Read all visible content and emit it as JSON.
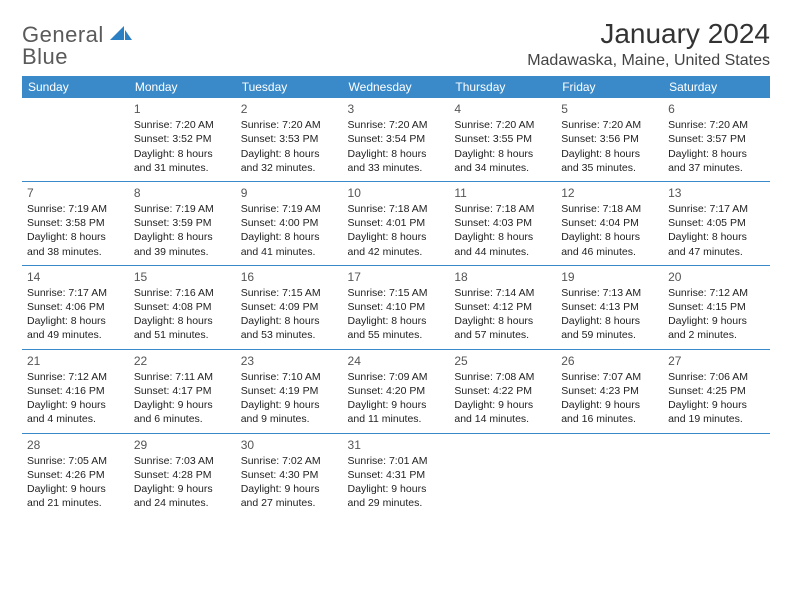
{
  "logo": {
    "text_gray": "General",
    "text_blue": "Blue",
    "shape_color": "#2b7fc3"
  },
  "header": {
    "month_title": "January 2024",
    "location": "Madawaska, Maine, United States"
  },
  "colors": {
    "header_bg": "#3a8ac9",
    "header_text": "#ffffff",
    "row_border": "#3a8ac9",
    "body_text": "#222222",
    "daynum_color": "#555555",
    "page_bg": "#ffffff"
  },
  "weekdays": [
    "Sunday",
    "Monday",
    "Tuesday",
    "Wednesday",
    "Thursday",
    "Friday",
    "Saturday"
  ],
  "cells": [
    [
      {
        "day": "",
        "sunrise": "",
        "sunset": "",
        "daylight1": "",
        "daylight2": ""
      },
      {
        "day": "1",
        "sunrise": "Sunrise: 7:20 AM",
        "sunset": "Sunset: 3:52 PM",
        "daylight1": "Daylight: 8 hours",
        "daylight2": "and 31 minutes."
      },
      {
        "day": "2",
        "sunrise": "Sunrise: 7:20 AM",
        "sunset": "Sunset: 3:53 PM",
        "daylight1": "Daylight: 8 hours",
        "daylight2": "and 32 minutes."
      },
      {
        "day": "3",
        "sunrise": "Sunrise: 7:20 AM",
        "sunset": "Sunset: 3:54 PM",
        "daylight1": "Daylight: 8 hours",
        "daylight2": "and 33 minutes."
      },
      {
        "day": "4",
        "sunrise": "Sunrise: 7:20 AM",
        "sunset": "Sunset: 3:55 PM",
        "daylight1": "Daylight: 8 hours",
        "daylight2": "and 34 minutes."
      },
      {
        "day": "5",
        "sunrise": "Sunrise: 7:20 AM",
        "sunset": "Sunset: 3:56 PM",
        "daylight1": "Daylight: 8 hours",
        "daylight2": "and 35 minutes."
      },
      {
        "day": "6",
        "sunrise": "Sunrise: 7:20 AM",
        "sunset": "Sunset: 3:57 PM",
        "daylight1": "Daylight: 8 hours",
        "daylight2": "and 37 minutes."
      }
    ],
    [
      {
        "day": "7",
        "sunrise": "Sunrise: 7:19 AM",
        "sunset": "Sunset: 3:58 PM",
        "daylight1": "Daylight: 8 hours",
        "daylight2": "and 38 minutes."
      },
      {
        "day": "8",
        "sunrise": "Sunrise: 7:19 AM",
        "sunset": "Sunset: 3:59 PM",
        "daylight1": "Daylight: 8 hours",
        "daylight2": "and 39 minutes."
      },
      {
        "day": "9",
        "sunrise": "Sunrise: 7:19 AM",
        "sunset": "Sunset: 4:00 PM",
        "daylight1": "Daylight: 8 hours",
        "daylight2": "and 41 minutes."
      },
      {
        "day": "10",
        "sunrise": "Sunrise: 7:18 AM",
        "sunset": "Sunset: 4:01 PM",
        "daylight1": "Daylight: 8 hours",
        "daylight2": "and 42 minutes."
      },
      {
        "day": "11",
        "sunrise": "Sunrise: 7:18 AM",
        "sunset": "Sunset: 4:03 PM",
        "daylight1": "Daylight: 8 hours",
        "daylight2": "and 44 minutes."
      },
      {
        "day": "12",
        "sunrise": "Sunrise: 7:18 AM",
        "sunset": "Sunset: 4:04 PM",
        "daylight1": "Daylight: 8 hours",
        "daylight2": "and 46 minutes."
      },
      {
        "day": "13",
        "sunrise": "Sunrise: 7:17 AM",
        "sunset": "Sunset: 4:05 PM",
        "daylight1": "Daylight: 8 hours",
        "daylight2": "and 47 minutes."
      }
    ],
    [
      {
        "day": "14",
        "sunrise": "Sunrise: 7:17 AM",
        "sunset": "Sunset: 4:06 PM",
        "daylight1": "Daylight: 8 hours",
        "daylight2": "and 49 minutes."
      },
      {
        "day": "15",
        "sunrise": "Sunrise: 7:16 AM",
        "sunset": "Sunset: 4:08 PM",
        "daylight1": "Daylight: 8 hours",
        "daylight2": "and 51 minutes."
      },
      {
        "day": "16",
        "sunrise": "Sunrise: 7:15 AM",
        "sunset": "Sunset: 4:09 PM",
        "daylight1": "Daylight: 8 hours",
        "daylight2": "and 53 minutes."
      },
      {
        "day": "17",
        "sunrise": "Sunrise: 7:15 AM",
        "sunset": "Sunset: 4:10 PM",
        "daylight1": "Daylight: 8 hours",
        "daylight2": "and 55 minutes."
      },
      {
        "day": "18",
        "sunrise": "Sunrise: 7:14 AM",
        "sunset": "Sunset: 4:12 PM",
        "daylight1": "Daylight: 8 hours",
        "daylight2": "and 57 minutes."
      },
      {
        "day": "19",
        "sunrise": "Sunrise: 7:13 AM",
        "sunset": "Sunset: 4:13 PM",
        "daylight1": "Daylight: 8 hours",
        "daylight2": "and 59 minutes."
      },
      {
        "day": "20",
        "sunrise": "Sunrise: 7:12 AM",
        "sunset": "Sunset: 4:15 PM",
        "daylight1": "Daylight: 9 hours",
        "daylight2": "and 2 minutes."
      }
    ],
    [
      {
        "day": "21",
        "sunrise": "Sunrise: 7:12 AM",
        "sunset": "Sunset: 4:16 PM",
        "daylight1": "Daylight: 9 hours",
        "daylight2": "and 4 minutes."
      },
      {
        "day": "22",
        "sunrise": "Sunrise: 7:11 AM",
        "sunset": "Sunset: 4:17 PM",
        "daylight1": "Daylight: 9 hours",
        "daylight2": "and 6 minutes."
      },
      {
        "day": "23",
        "sunrise": "Sunrise: 7:10 AM",
        "sunset": "Sunset: 4:19 PM",
        "daylight1": "Daylight: 9 hours",
        "daylight2": "and 9 minutes."
      },
      {
        "day": "24",
        "sunrise": "Sunrise: 7:09 AM",
        "sunset": "Sunset: 4:20 PM",
        "daylight1": "Daylight: 9 hours",
        "daylight2": "and 11 minutes."
      },
      {
        "day": "25",
        "sunrise": "Sunrise: 7:08 AM",
        "sunset": "Sunset: 4:22 PM",
        "daylight1": "Daylight: 9 hours",
        "daylight2": "and 14 minutes."
      },
      {
        "day": "26",
        "sunrise": "Sunrise: 7:07 AM",
        "sunset": "Sunset: 4:23 PM",
        "daylight1": "Daylight: 9 hours",
        "daylight2": "and 16 minutes."
      },
      {
        "day": "27",
        "sunrise": "Sunrise: 7:06 AM",
        "sunset": "Sunset: 4:25 PM",
        "daylight1": "Daylight: 9 hours",
        "daylight2": "and 19 minutes."
      }
    ],
    [
      {
        "day": "28",
        "sunrise": "Sunrise: 7:05 AM",
        "sunset": "Sunset: 4:26 PM",
        "daylight1": "Daylight: 9 hours",
        "daylight2": "and 21 minutes."
      },
      {
        "day": "29",
        "sunrise": "Sunrise: 7:03 AM",
        "sunset": "Sunset: 4:28 PM",
        "daylight1": "Daylight: 9 hours",
        "daylight2": "and 24 minutes."
      },
      {
        "day": "30",
        "sunrise": "Sunrise: 7:02 AM",
        "sunset": "Sunset: 4:30 PM",
        "daylight1": "Daylight: 9 hours",
        "daylight2": "and 27 minutes."
      },
      {
        "day": "31",
        "sunrise": "Sunrise: 7:01 AM",
        "sunset": "Sunset: 4:31 PM",
        "daylight1": "Daylight: 9 hours",
        "daylight2": "and 29 minutes."
      },
      {
        "day": "",
        "sunrise": "",
        "sunset": "",
        "daylight1": "",
        "daylight2": ""
      },
      {
        "day": "",
        "sunrise": "",
        "sunset": "",
        "daylight1": "",
        "daylight2": ""
      },
      {
        "day": "",
        "sunrise": "",
        "sunset": "",
        "daylight1": "",
        "daylight2": ""
      }
    ]
  ]
}
